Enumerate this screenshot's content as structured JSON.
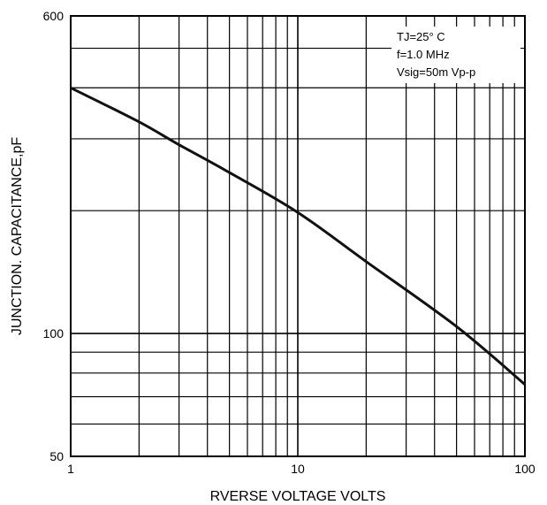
{
  "chart_data": {
    "type": "line",
    "title": "",
    "xlabel": "RVERSE VOLTAGE VOLTS",
    "ylabel": "JUNCTION. CAPACITANCE,pF",
    "x_scale": "log",
    "y_scale": "log",
    "xlim": [
      1,
      100
    ],
    "ylim": [
      50,
      600
    ],
    "grid": true,
    "x_tick_labels": [
      "1",
      "10",
      "100"
    ],
    "y_tick_labels": [
      "600",
      "100",
      "50"
    ],
    "annotation": [
      "TJ=25° C",
      "f=1.0 MHz",
      "Vsig=50m Vp-p"
    ],
    "annotation_position": "top-right",
    "series": [
      {
        "x": [
          1,
          2,
          3,
          5,
          10,
          20,
          50,
          100
        ],
        "y": [
          400,
          330,
          290,
          248,
          198,
          150,
          104,
          75
        ]
      }
    ]
  },
  "colors": {
    "line": "#111111",
    "grid": "#000000",
    "background": "#ffffff"
  }
}
